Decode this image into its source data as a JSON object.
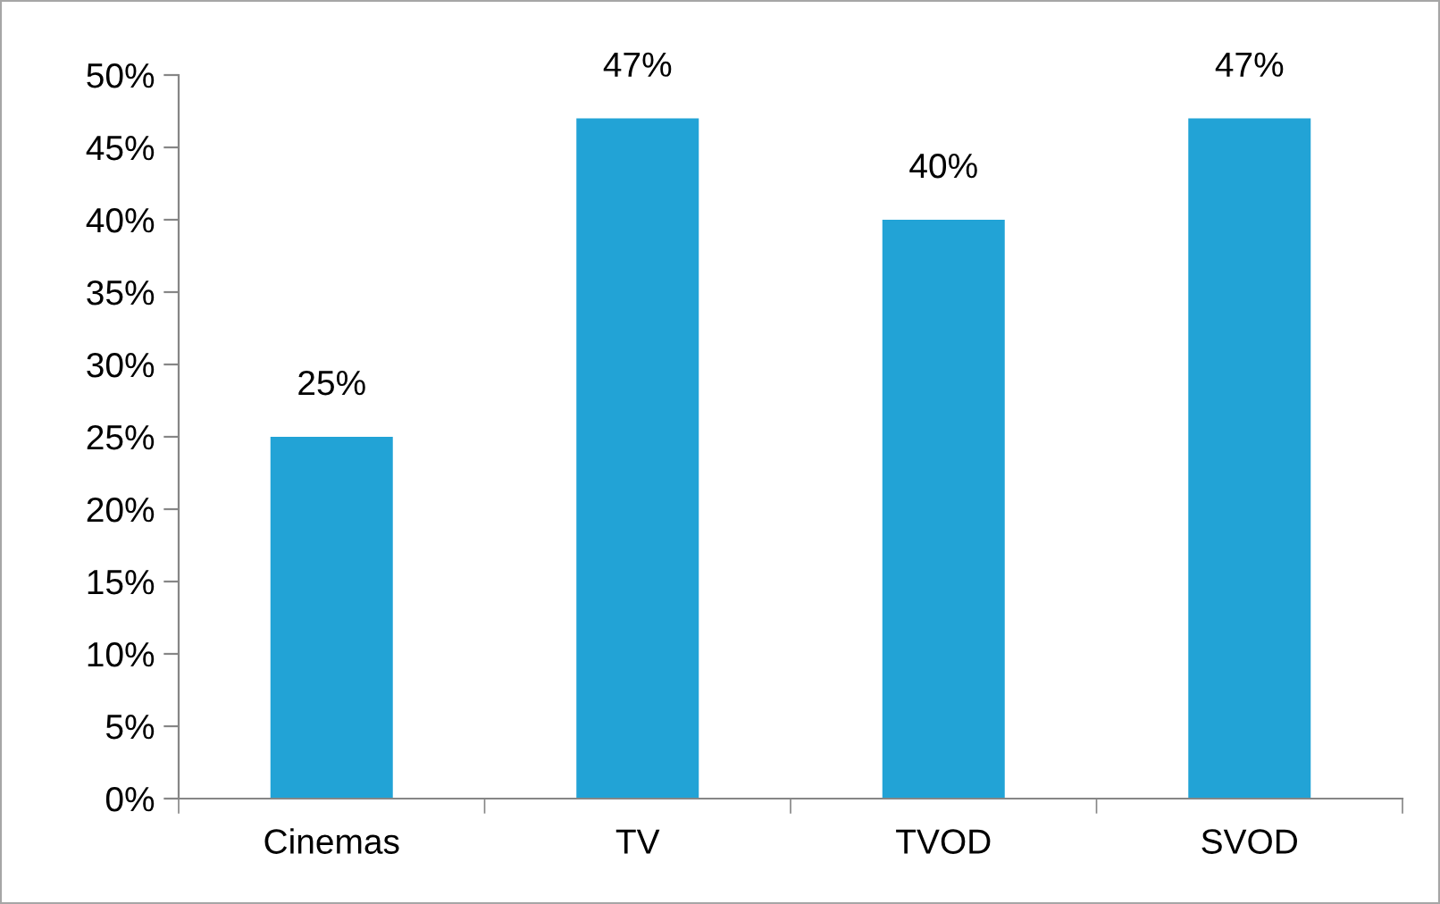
{
  "chart_data": {
    "type": "bar",
    "categories": [
      "Cinemas",
      "TV",
      "TVOD",
      "SVOD"
    ],
    "values": [
      25,
      47,
      40,
      47
    ],
    "value_labels": [
      "25%",
      "47%",
      "40%",
      "47%"
    ],
    "color": "#22a3d6",
    "ylim": [
      0,
      50
    ],
    "yticks": [
      {
        "value": 0,
        "label": "0%"
      },
      {
        "value": 5,
        "label": "5%"
      },
      {
        "value": 10,
        "label": "10%"
      },
      {
        "value": 15,
        "label": "15%"
      },
      {
        "value": 20,
        "label": "20%"
      },
      {
        "value": 25,
        "label": "25%"
      },
      {
        "value": 30,
        "label": "30%"
      },
      {
        "value": 35,
        "label": "35%"
      },
      {
        "value": 40,
        "label": "40%"
      },
      {
        "value": 45,
        "label": "45%"
      },
      {
        "value": 50,
        "label": "50%"
      }
    ],
    "grid": false,
    "legend": false
  }
}
